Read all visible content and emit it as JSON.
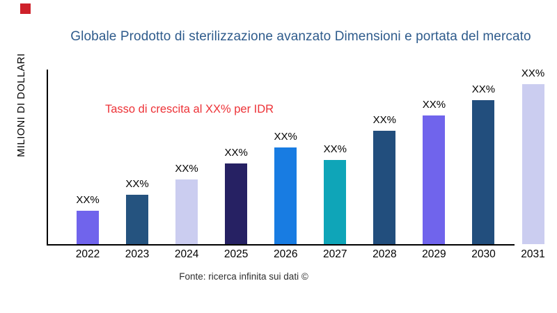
{
  "logo": {
    "color": "#CE202A"
  },
  "title": {
    "text": "Globale Prodotto di sterilizzazione avanzato Dimensioni e portata del mercato",
    "color": "#2E5B8C"
  },
  "annotation": {
    "text": "Tasso di crescita al XX% per IDR",
    "color": "#ED3237"
  },
  "footer": {
    "text": "Fonte: ricerca infinita sui dati ©"
  },
  "chart_data": {
    "type": "bar",
    "title": "Globale Prodotto di sterilizzazione avanzato Dimensioni e portata del mercato",
    "xlabel": "",
    "ylabel": "MILIONI DI DOLLARI",
    "categories": [
      "2022",
      "2023",
      "2024",
      "2025",
      "2026",
      "2027",
      "2028",
      "2029",
      "2030",
      "2031"
    ],
    "bar_value_labels": [
      "XX%",
      "XX%",
      "XX%",
      "XX%",
      "XX%",
      "XX%",
      "XX%",
      "XX%",
      "XX%",
      "XX%"
    ],
    "values_relative": [
      48,
      71,
      93,
      116,
      139,
      121,
      163,
      185,
      207,
      230
    ],
    "bar_colors": [
      "#7064EC",
      "#25537F",
      "#CBCDF0",
      "#262163",
      "#187CE2",
      "#0FA5B8",
      "#224E7D",
      "#7064EC",
      "#224E7D",
      "#CBCDF0"
    ],
    "annotation": "Tasso di crescita al XX% per IDR",
    "source": "Fonte: ricerca infinita sui dati ©",
    "legend": "none",
    "grid": "off",
    "axis_color": "#000000",
    "note": "values masked as XX% in original; values_relative are bar heights read from pixels"
  }
}
